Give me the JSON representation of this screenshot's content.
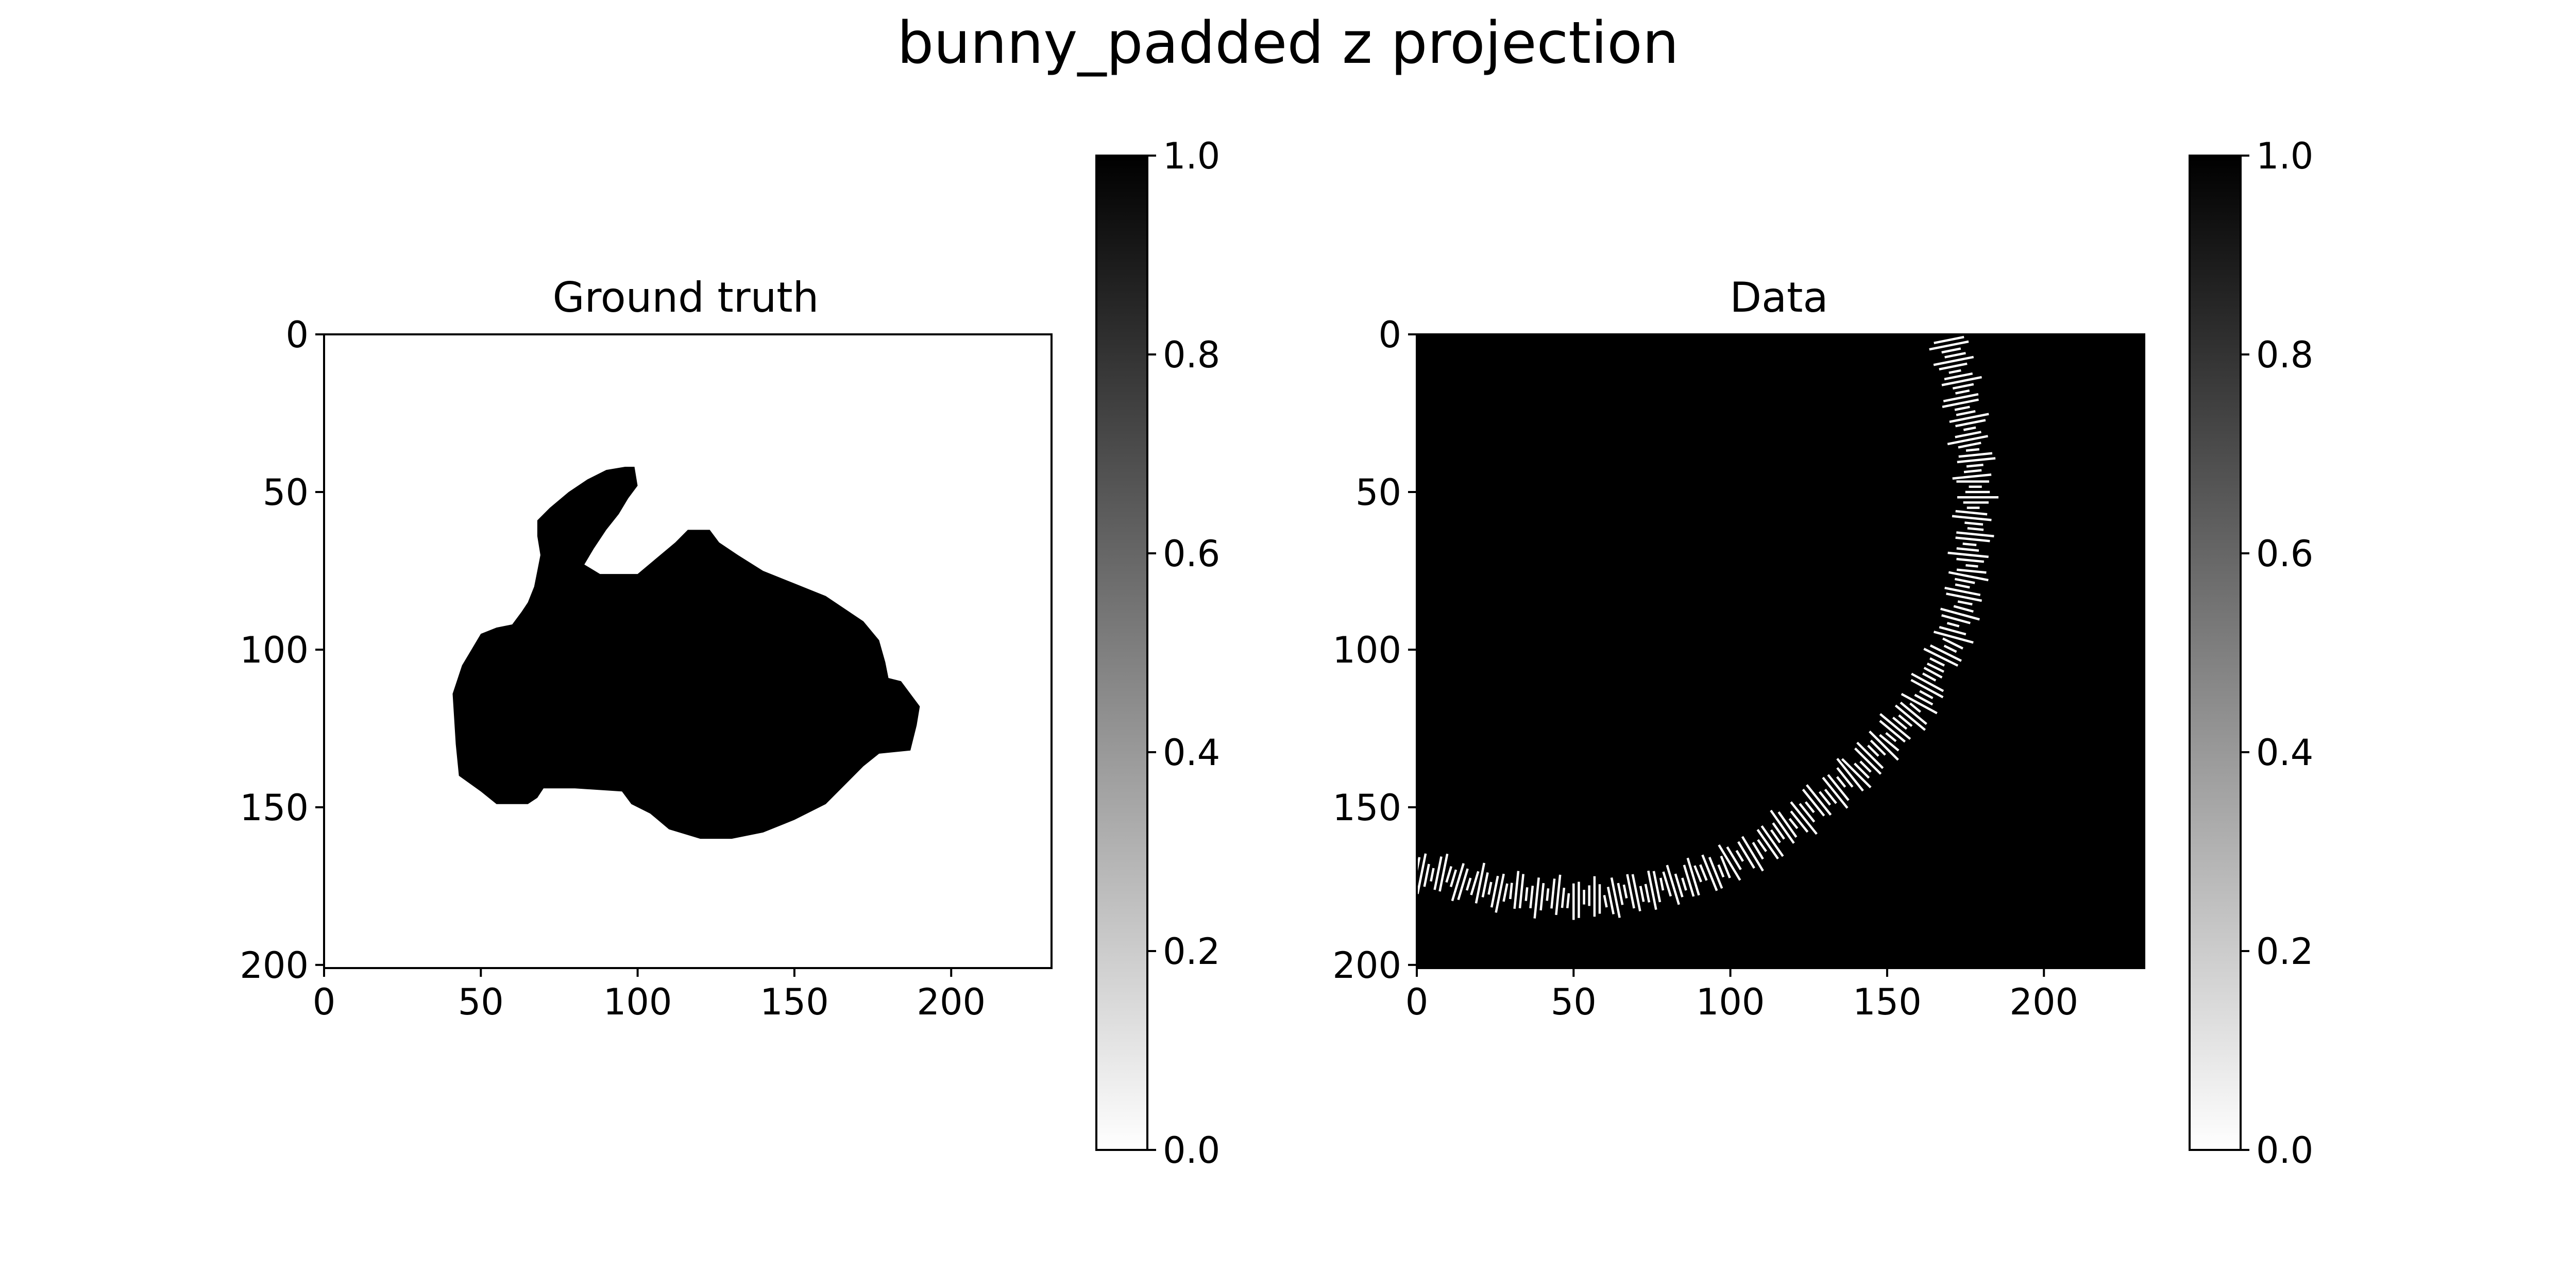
{
  "figure": {
    "title": "bunny_padded z projection"
  },
  "colors": {
    "background": "#ffffff",
    "foreground": "#000000",
    "colormap": "gray_r"
  },
  "chart_data": [
    {
      "type": "heatmap",
      "title": "Ground truth",
      "xlabel": "",
      "ylabel": "",
      "xlim": [
        0,
        232
      ],
      "ylim": [
        201,
        0
      ],
      "xticks": [
        0,
        50,
        100,
        150,
        200
      ],
      "yticks": [
        0,
        50,
        100,
        150,
        200
      ],
      "value_range": [
        0.0,
        1.0
      ],
      "colorbar": {
        "ticks": [
          "0.0",
          "0.2",
          "0.4",
          "0.6",
          "0.8",
          "1.0"
        ]
      },
      "background_value": 0.0,
      "shape_value": 1.0,
      "shape_outline_xy": [
        [
          41,
          114
        ],
        [
          44,
          105
        ],
        [
          47,
          100
        ],
        [
          50,
          95
        ],
        [
          55,
          93
        ],
        [
          60,
          92
        ],
        [
          63,
          88
        ],
        [
          65,
          85
        ],
        [
          67,
          80
        ],
        [
          68,
          75
        ],
        [
          69,
          70
        ],
        [
          68,
          64
        ],
        [
          68,
          59
        ],
        [
          72,
          55
        ],
        [
          78,
          50
        ],
        [
          84,
          46
        ],
        [
          90,
          43
        ],
        [
          96,
          42
        ],
        [
          99,
          42
        ],
        [
          100,
          48
        ],
        [
          97,
          52
        ],
        [
          94,
          57
        ],
        [
          90,
          62
        ],
        [
          86,
          68
        ],
        [
          83,
          73
        ],
        [
          88,
          76
        ],
        [
          100,
          76
        ],
        [
          106,
          71
        ],
        [
          112,
          66
        ],
        [
          116,
          62
        ],
        [
          123,
          62
        ],
        [
          126,
          66
        ],
        [
          132,
          70
        ],
        [
          140,
          75
        ],
        [
          150,
          79
        ],
        [
          160,
          83
        ],
        [
          166,
          87
        ],
        [
          172,
          91
        ],
        [
          177,
          97
        ],
        [
          179,
          104
        ],
        [
          180,
          109
        ],
        [
          184,
          110
        ],
        [
          190,
          118
        ],
        [
          189,
          124
        ],
        [
          187,
          132
        ],
        [
          177,
          133
        ],
        [
          172,
          137
        ],
        [
          166,
          143
        ],
        [
          160,
          149
        ],
        [
          150,
          154
        ],
        [
          140,
          158
        ],
        [
          130,
          160
        ],
        [
          120,
          160
        ],
        [
          110,
          157
        ],
        [
          104,
          152
        ],
        [
          98,
          149
        ],
        [
          95,
          145
        ],
        [
          80,
          144
        ],
        [
          70,
          144
        ],
        [
          68,
          147
        ],
        [
          65,
          149
        ],
        [
          55,
          149
        ],
        [
          50,
          145
        ],
        [
          43,
          140
        ],
        [
          42,
          130
        ]
      ]
    },
    {
      "type": "heatmap",
      "title": "Data",
      "xlabel": "",
      "ylabel": "",
      "xlim": [
        0,
        232
      ],
      "ylim": [
        201,
        0
      ],
      "xticks": [
        0,
        50,
        100,
        150,
        200
      ],
      "yticks": [
        0,
        50,
        100,
        150,
        200
      ],
      "value_range": [
        0.0,
        1.0
      ],
      "colorbar": {
        "ticks": [
          "0.0",
          "0.2",
          "0.4",
          "0.6",
          "0.8",
          "1.0"
        ]
      },
      "background_value": 1.0,
      "arc_value": 0.0,
      "arc_centerline_xy": [
        [
          0,
          170
        ],
        [
          10,
          172
        ],
        [
          20,
          175
        ],
        [
          30,
          177
        ],
        [
          40,
          178
        ],
        [
          50,
          179
        ],
        [
          60,
          179
        ],
        [
          70,
          177
        ],
        [
          80,
          175
        ],
        [
          90,
          172
        ],
        [
          100,
          168
        ],
        [
          110,
          162
        ],
        [
          120,
          155
        ],
        [
          130,
          147
        ],
        [
          140,
          139
        ],
        [
          150,
          129
        ],
        [
          160,
          117
        ],
        [
          166,
          106
        ],
        [
          171,
          96
        ],
        [
          174,
          85
        ],
        [
          176,
          75
        ],
        [
          177,
          65
        ],
        [
          178,
          55
        ],
        [
          178,
          45
        ],
        [
          177,
          35
        ],
        [
          175,
          25
        ],
        [
          173,
          15
        ],
        [
          171,
          5
        ],
        [
          170,
          0
        ]
      ]
    }
  ]
}
